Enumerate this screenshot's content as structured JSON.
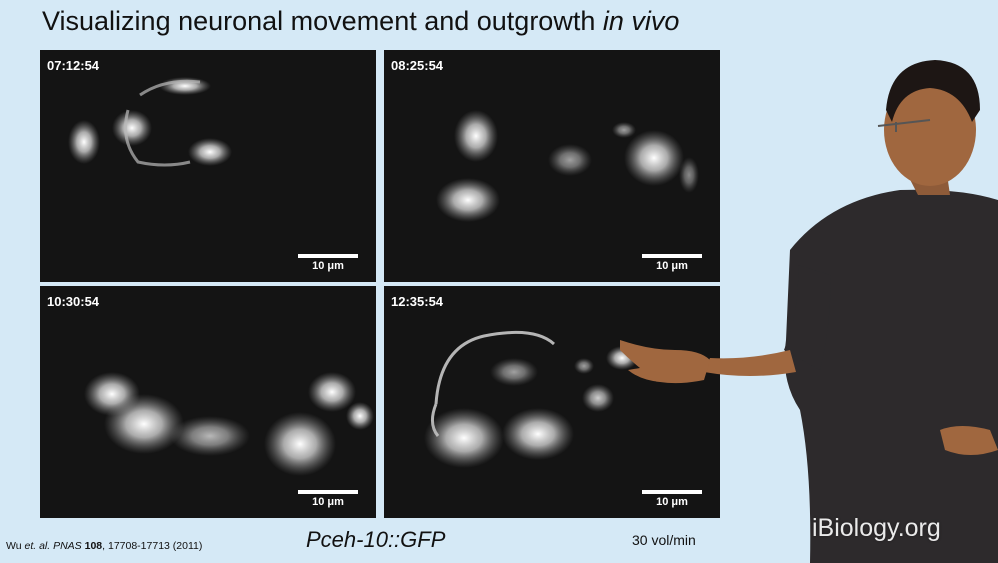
{
  "slide": {
    "title_main": "Visualizing neuronal movement and outgrowth ",
    "title_italic": "in vivo"
  },
  "panels": [
    {
      "timestamp": "07:12:54",
      "scale_label": "10 μm"
    },
    {
      "timestamp": "08:25:54",
      "scale_label": "10 μm"
    },
    {
      "timestamp": "10:30:54",
      "scale_label": "10 μm"
    },
    {
      "timestamp": "12:35:54",
      "scale_label": "10 μm"
    }
  ],
  "citation": {
    "authors": "Wu ",
    "etal": "et. al.",
    "journal": " PNAS ",
    "volume": "108",
    "pages": ", 17708-17713 (2011)"
  },
  "caption": "Pceh-10::GFP",
  "rate": "30 vol/min",
  "watermark": "iBiology.org",
  "colors": {
    "background": "#d5e9f6",
    "panel": "#141414",
    "shirt": "#2d2a2c",
    "skin": "#a0673f"
  }
}
